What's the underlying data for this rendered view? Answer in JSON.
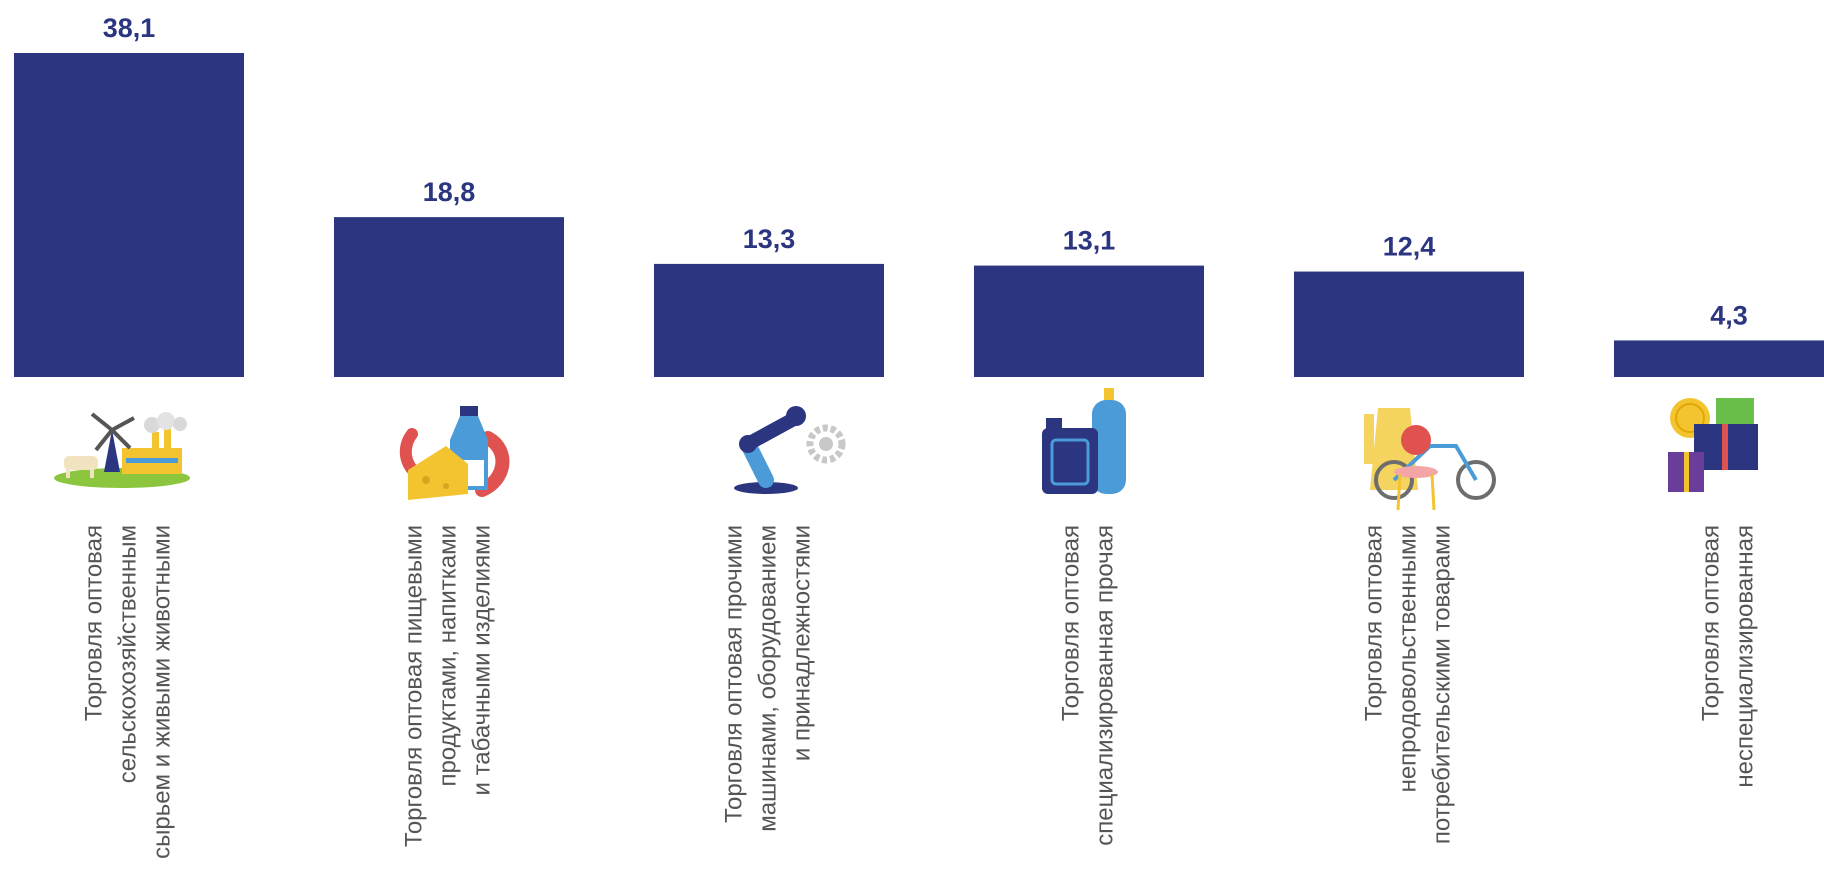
{
  "chart_data": {
    "type": "bar",
    "categories": [
      [
        "Торговля оптовая",
        "сельскохозяйственным",
        "сырьем и живыми животными"
      ],
      [
        "Торговля оптовая пищевыми",
        "продуктами, напитками",
        "и табачными изделиями"
      ],
      [
        "Торговля оптовая прочими",
        "машинами, оборудованием",
        "и принадлежностями"
      ],
      [
        "Торговля оптовая",
        "специализированная прочая"
      ],
      [
        "Торговля оптовая",
        "непродовольственными",
        "потребительскими товарами"
      ],
      [
        "Торговля оптовая",
        "неспециализированная"
      ]
    ],
    "values": [
      38.1,
      18.8,
      13.3,
      13.1,
      12.4,
      4.3
    ],
    "value_labels": [
      "38,1",
      "18,8",
      "13,3",
      "13,1",
      "12,4",
      "4,3"
    ],
    "icons": [
      "farm-windmill-factory-icon",
      "food-cheese-milk-sausage-icon",
      "robot-arm-gear-icon",
      "canister-gas-cylinder-icon",
      "coat-chair-bicycle-icon",
      "coin-gift-boxes-icon"
    ],
    "ylim": [
      0,
      38.1
    ],
    "bar_color": "#2b3580",
    "label_color": "#2b3580",
    "category_color": "#555555",
    "grid": false,
    "legend": "none"
  }
}
